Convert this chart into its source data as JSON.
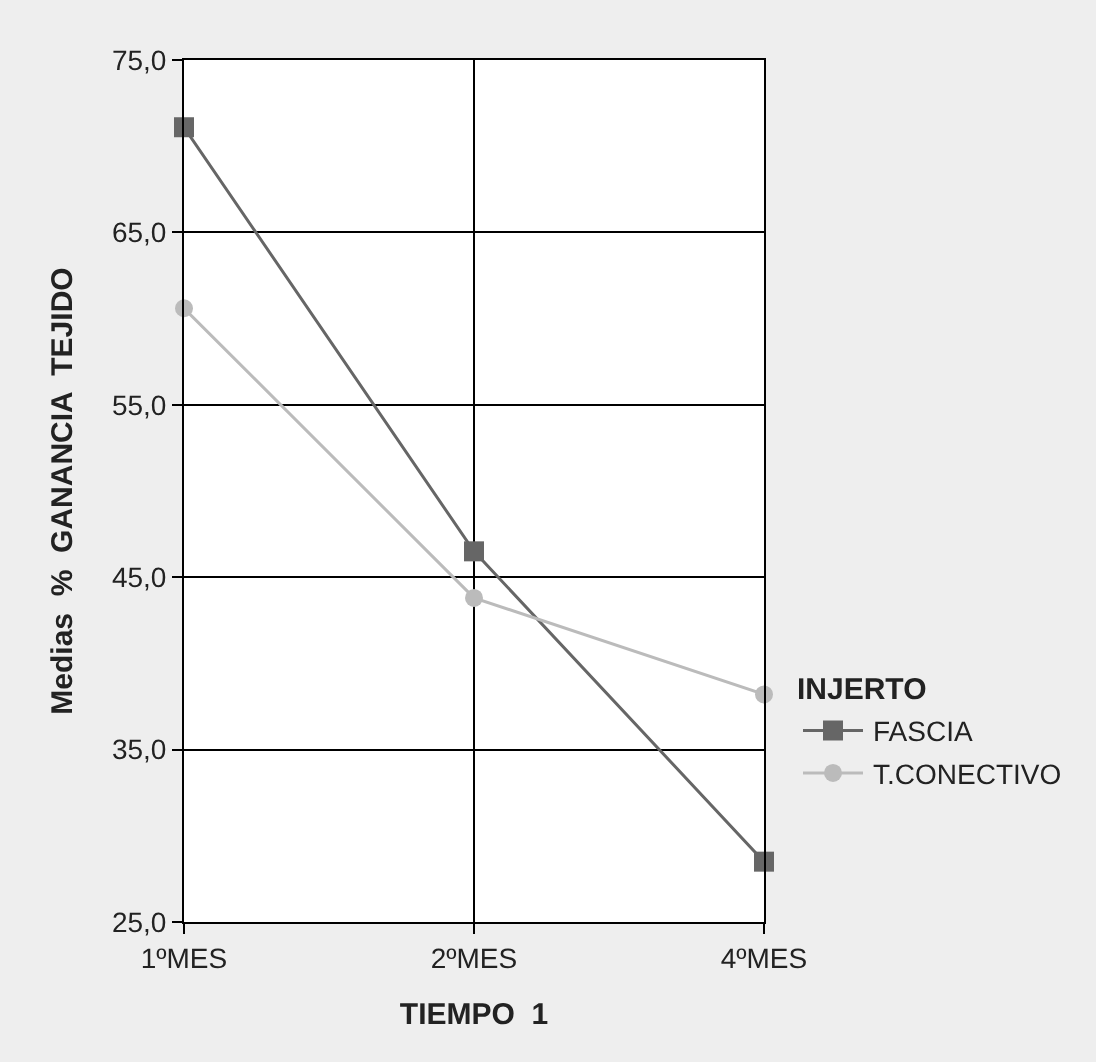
{
  "chart_data": {
    "type": "line",
    "xlabel": "TIEMPO  1",
    "ylabel": "Medias  %  GANANCIA  TEJIDO",
    "legend_title": "INJERTO",
    "categories": [
      "1ºMES",
      "2ºMES",
      "4ºMES"
    ],
    "series": [
      {
        "name": "FASCIA",
        "color": "#666666",
        "values": [
          71.1,
          46.5,
          28.5
        ],
        "marker": "square"
      },
      {
        "name": "T.CONECTIVO",
        "color": "#bbbbbb",
        "values": [
          60.6,
          43.8,
          38.2
        ],
        "marker": "circle"
      }
    ],
    "ylim": [
      25,
      75
    ],
    "yticks": [
      {
        "value": 25,
        "label": "25,0"
      },
      {
        "value": 35,
        "label": "35,0"
      },
      {
        "value": 45,
        "label": "45,0"
      },
      {
        "value": 55,
        "label": "55,0"
      },
      {
        "value": 65,
        "label": "65,0"
      },
      {
        "value": 75,
        "label": "75,0"
      }
    ],
    "grid": true,
    "legend": "bottom right",
    "line_style": "solid"
  }
}
